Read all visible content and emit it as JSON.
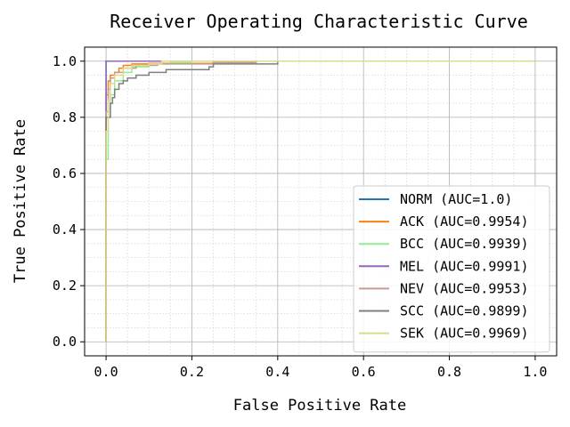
{
  "chart_data": {
    "type": "line",
    "title": "Receiver Operating Characteristic Curve",
    "xlabel": "False Positive Rate",
    "ylabel": "True Positive Rate",
    "xlim": [
      -0.05,
      1.05
    ],
    "ylim": [
      -0.05,
      1.05
    ],
    "xticks": [
      0.0,
      0.2,
      0.4,
      0.6,
      0.8,
      1.0
    ],
    "xtick_labels": [
      "0.0",
      "0.2",
      "0.4",
      "0.6",
      "0.8",
      "1.0"
    ],
    "yticks": [
      0.0,
      0.2,
      0.4,
      0.6,
      0.8,
      1.0
    ],
    "ytick_labels": [
      "0.0",
      "0.2",
      "0.4",
      "0.6",
      "0.8",
      "1.0"
    ],
    "grid": true,
    "minor_grid": true,
    "legend_position": "lower-right",
    "series": [
      {
        "name": "NORM (AUC=1.0)",
        "color": "#1f77b4",
        "points": [
          [
            0.0,
            0.0
          ],
          [
            0.0,
            0.86
          ],
          [
            0.0,
            1.0
          ],
          [
            1.0,
            1.0
          ]
        ]
      },
      {
        "name": "ACK (AUC=0.9954)",
        "color": "#ff7f0e",
        "points": [
          [
            0.0,
            0.0
          ],
          [
            0.0,
            0.88
          ],
          [
            0.005,
            0.93
          ],
          [
            0.01,
            0.95
          ],
          [
            0.02,
            0.96
          ],
          [
            0.03,
            0.975
          ],
          [
            0.04,
            0.985
          ],
          [
            0.06,
            0.99
          ],
          [
            0.1,
            0.992
          ],
          [
            0.25,
            0.995
          ],
          [
            0.35,
            0.998
          ],
          [
            0.35,
            1.0
          ],
          [
            1.0,
            1.0
          ]
        ]
      },
      {
        "name": "BCC (AUC=0.9939)",
        "color": "#90ee90",
        "points": [
          [
            0.0,
            0.0
          ],
          [
            0.0,
            0.65
          ],
          [
            0.005,
            0.8
          ],
          [
            0.01,
            0.88
          ],
          [
            0.02,
            0.93
          ],
          [
            0.04,
            0.96
          ],
          [
            0.06,
            0.98
          ],
          [
            0.1,
            0.99
          ],
          [
            0.15,
            0.995
          ],
          [
            0.2,
            1.0
          ],
          [
            1.0,
            1.0
          ]
        ]
      },
      {
        "name": "MEL (AUC=0.9991)",
        "color": "#9467bd",
        "points": [
          [
            0.0,
            0.0
          ],
          [
            0.0,
            0.95
          ],
          [
            0.0,
            1.0
          ],
          [
            0.05,
            1.0
          ],
          [
            1.0,
            1.0
          ]
        ]
      },
      {
        "name": "NEV (AUC=0.9953)",
        "color": "#c49c94",
        "points": [
          [
            0.0,
            0.0
          ],
          [
            0.0,
            0.82
          ],
          [
            0.005,
            0.9
          ],
          [
            0.01,
            0.94
          ],
          [
            0.02,
            0.96
          ],
          [
            0.04,
            0.975
          ],
          [
            0.07,
            0.985
          ],
          [
            0.12,
            0.99
          ],
          [
            0.25,
            0.995
          ],
          [
            0.35,
            1.0
          ],
          [
            1.0,
            1.0
          ]
        ]
      },
      {
        "name": "SCC (AUC=0.9899)",
        "color": "#7f7f7f",
        "points": [
          [
            0.0,
            0.0
          ],
          [
            0.0,
            0.8
          ],
          [
            0.01,
            0.85
          ],
          [
            0.015,
            0.87
          ],
          [
            0.02,
            0.9
          ],
          [
            0.03,
            0.92
          ],
          [
            0.04,
            0.93
          ],
          [
            0.05,
            0.94
          ],
          [
            0.07,
            0.95
          ],
          [
            0.1,
            0.96
          ],
          [
            0.14,
            0.97
          ],
          [
            0.24,
            0.98
          ],
          [
            0.25,
            0.99
          ],
          [
            0.4,
            1.0
          ],
          [
            1.0,
            1.0
          ]
        ]
      },
      {
        "name": "SEK (AUC=0.9969)",
        "color": "#dbdb8d",
        "points": [
          [
            0.0,
            0.0
          ],
          [
            0.0,
            0.75
          ],
          [
            0.005,
            0.86
          ],
          [
            0.01,
            0.92
          ],
          [
            0.02,
            0.95
          ],
          [
            0.04,
            0.975
          ],
          [
            0.06,
            0.985
          ],
          [
            0.1,
            0.99
          ],
          [
            0.13,
            1.0
          ],
          [
            1.0,
            1.0
          ]
        ]
      }
    ]
  }
}
